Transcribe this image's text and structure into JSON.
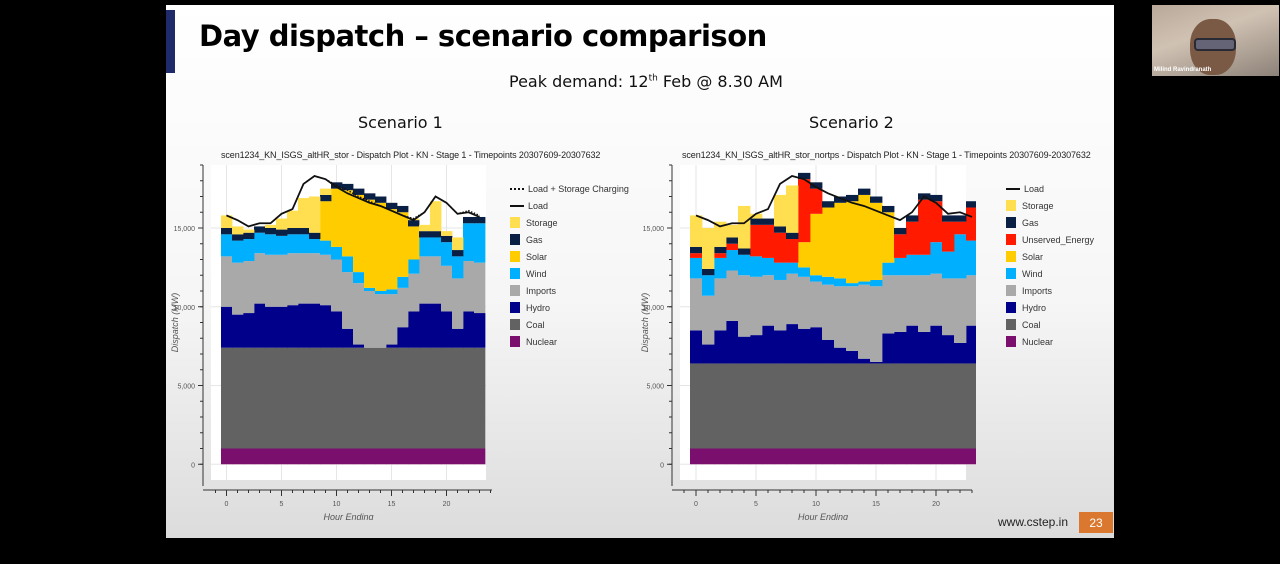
{
  "slide": {
    "title": "Day dispatch – scenario comparison",
    "peak_demand_prefix": "Peak demand: 12",
    "peak_demand_sup": "th",
    "peak_demand_suffix": " Feb @ 8.30 AM",
    "footer_url": "www.cstep.in",
    "page_number": "23"
  },
  "webcam": {
    "participant_name": "Milind Ravindranath"
  },
  "colors": {
    "Nuclear": "#7b0f6e",
    "Coal": "#626262",
    "Hydro": "#00008b",
    "Imports": "#a9a9a9",
    "Wind": "#00b0ff",
    "Solar": "#ffcc00",
    "Unserved_Energy": "#ff1a00",
    "Gas": "#0a1f44",
    "Storage": "#ffde4f",
    "Load": "#111111",
    "accent": "#1f2a6b",
    "page_badge": "#d9782e"
  },
  "chart_data": [
    {
      "type": "area",
      "heading": "Scenario 1",
      "title": "scen1234_KN_ISGS_altHR_stor - Dispatch Plot - KN - Stage 1 - Timepoints 20307609-20307632",
      "xlabel": "Hour Ending",
      "ylabel": "Dispatch (MW)",
      "xlim": [
        -1,
        24
      ],
      "ylim": [
        -1000,
        19000
      ],
      "xticks": [
        0,
        5,
        10,
        15,
        20
      ],
      "xtick_labels": [
        "0",
        "5",
        "10",
        "15",
        "20"
      ],
      "yticks": [
        0,
        5000,
        10000,
        15000
      ],
      "ytick_labels": [
        "0",
        "5,000",
        "10,000",
        "15,000"
      ],
      "grid": true,
      "legend_position": "right",
      "legend": [
        "Load + Storage Charging",
        "Load",
        "Storage",
        "Gas",
        "Solar",
        "Wind",
        "Imports",
        "Hydro",
        "Coal",
        "Nuclear"
      ],
      "x": [
        0,
        1,
        2,
        3,
        4,
        5,
        6,
        7,
        8,
        9,
        10,
        11,
        12,
        13,
        14,
        15,
        16,
        17,
        18,
        19,
        20,
        21,
        22,
        23
      ],
      "series": [
        {
          "name": "Nuclear",
          "values": [
            1000,
            1000,
            1000,
            1000,
            1000,
            1000,
            1000,
            1000,
            1000,
            1000,
            1000,
            1000,
            1000,
            1000,
            1000,
            1000,
            1000,
            1000,
            1000,
            1000,
            1000,
            1000,
            1000,
            1000
          ]
        },
        {
          "name": "Coal",
          "values": [
            6400,
            6400,
            6400,
            6400,
            6400,
            6400,
            6400,
            6400,
            6400,
            6400,
            6400,
            6400,
            6400,
            6400,
            6400,
            6400,
            6400,
            6400,
            6400,
            6400,
            6400,
            6400,
            6400,
            6400
          ]
        },
        {
          "name": "Hydro",
          "values": [
            2600,
            2100,
            2200,
            2800,
            2600,
            2600,
            2700,
            2800,
            2800,
            2700,
            2300,
            1200,
            200,
            0,
            0,
            200,
            1300,
            2300,
            2800,
            2800,
            2300,
            1200,
            2300,
            2200
          ]
        },
        {
          "name": "Imports",
          "values": [
            3200,
            3300,
            3300,
            3200,
            3300,
            3300,
            3300,
            3200,
            3200,
            3200,
            3300,
            3600,
            3900,
            3600,
            3400,
            3200,
            2500,
            2400,
            3000,
            3000,
            2900,
            3200,
            3200,
            3200
          ]
        },
        {
          "name": "Wind",
          "values": [
            1400,
            1400,
            1400,
            1300,
            1300,
            1200,
            1200,
            1200,
            900,
            900,
            800,
            1000,
            700,
            200,
            200,
            300,
            700,
            900,
            1200,
            1200,
            1500,
            1400,
            2400,
            2500
          ]
        },
        {
          "name": "Solar",
          "values": [
            0,
            0,
            0,
            0,
            0,
            0,
            0,
            0,
            0,
            2500,
            3700,
            4200,
            4900,
            5600,
            5600,
            5100,
            4100,
            2100,
            0,
            0,
            0,
            0,
            0,
            0
          ]
        },
        {
          "name": "Gas",
          "values": [
            400,
            400,
            400,
            400,
            400,
            400,
            400,
            400,
            400,
            400,
            400,
            400,
            400,
            400,
            400,
            400,
            400,
            400,
            400,
            400,
            400,
            400,
            400,
            400
          ]
        },
        {
          "name": "Storage",
          "values": [
            800,
            500,
            200,
            0,
            200,
            700,
            1100,
            1900,
            2300,
            400,
            0,
            0,
            0,
            0,
            0,
            0,
            0,
            100,
            400,
            1900,
            300,
            800,
            0,
            0
          ]
        }
      ],
      "load": [
        15800,
        15500,
        15100,
        15300,
        15300,
        15900,
        16200,
        17800,
        18300,
        18100,
        17600,
        17200,
        16900,
        16600,
        16400,
        16100,
        15800,
        15500,
        16000,
        17000,
        16600,
        15900,
        16000,
        15700
      ],
      "load_plus_storage_charging": [
        15800,
        15500,
        15100,
        15300,
        15300,
        15900,
        16200,
        17800,
        18300,
        18100,
        17700,
        17400,
        17000,
        16700,
        16400,
        16100,
        15800,
        15600,
        16000,
        17000,
        16600,
        15900,
        16100,
        15800
      ]
    },
    {
      "type": "area",
      "heading": "Scenario 2",
      "title": "scen1234_KN_ISGS_altHR_stor_nortps - Dispatch Plot - KN - Stage 1 - Timepoints 20307609-20307632",
      "xlabel": "Hour Ending",
      "ylabel": "Dispatch (MW)",
      "xlim": [
        -1,
        24
      ],
      "ylim": [
        -1000,
        19000
      ],
      "xticks": [
        0,
        5,
        10,
        15,
        20
      ],
      "xtick_labels": [
        "0",
        "5",
        "10",
        "15",
        "20"
      ],
      "yticks": [
        0,
        5000,
        10000,
        15000
      ],
      "ytick_labels": [
        "0",
        "5,000",
        "10,000",
        "15,000"
      ],
      "grid": true,
      "legend_position": "right",
      "legend": [
        "Load",
        "Storage",
        "Gas",
        "Unserved_Energy",
        "Solar",
        "Wind",
        "Imports",
        "Hydro",
        "Coal",
        "Nuclear"
      ],
      "x": [
        0,
        1,
        2,
        3,
        4,
        5,
        6,
        7,
        8,
        9,
        10,
        11,
        12,
        13,
        14,
        15,
        16,
        17,
        18,
        19,
        20,
        21,
        22,
        23
      ],
      "series": [
        {
          "name": "Nuclear",
          "values": [
            1000,
            1000,
            1000,
            1000,
            1000,
            1000,
            1000,
            1000,
            1000,
            1000,
            1000,
            1000,
            1000,
            1000,
            1000,
            1000,
            1000,
            1000,
            1000,
            1000,
            1000,
            1000,
            1000,
            1000
          ]
        },
        {
          "name": "Coal",
          "values": [
            5400,
            5400,
            5400,
            5400,
            5400,
            5400,
            5400,
            5400,
            5400,
            5400,
            5400,
            5400,
            5400,
            5400,
            5400,
            5400,
            5400,
            5400,
            5400,
            5400,
            5400,
            5400,
            5400,
            5400
          ]
        },
        {
          "name": "Hydro",
          "values": [
            2100,
            1200,
            2100,
            2700,
            1700,
            1800,
            2400,
            2100,
            2500,
            2200,
            2300,
            1500,
            1000,
            800,
            300,
            100,
            1900,
            2000,
            2400,
            2000,
            2400,
            1800,
            1300,
            2400
          ]
        },
        {
          "name": "Imports",
          "values": [
            3300,
            3100,
            3300,
            3200,
            3900,
            3700,
            3200,
            3200,
            3200,
            3300,
            2900,
            3500,
            3900,
            4100,
            4700,
            4800,
            3700,
            3600,
            3200,
            3600,
            3300,
            3600,
            4100,
            3200
          ]
        },
        {
          "name": "Wind",
          "values": [
            1300,
            1300,
            1300,
            1300,
            1300,
            1300,
            1100,
            1100,
            700,
            600,
            400,
            500,
            500,
            200,
            200,
            400,
            800,
            1100,
            1300,
            1300,
            2000,
            1700,
            2800,
            2200
          ]
        },
        {
          "name": "Solar",
          "values": [
            0,
            0,
            0,
            0,
            0,
            0,
            0,
            0,
            0,
            1600,
            3900,
            4400,
            4800,
            5200,
            5500,
            4900,
            3200,
            0,
            0,
            0,
            0,
            0,
            0,
            0
          ]
        },
        {
          "name": "Unserved_Energy",
          "values": [
            300,
            0,
            300,
            400,
            0,
            2000,
            2100,
            1900,
            1500,
            4000,
            1600,
            0,
            0,
            0,
            0,
            0,
            0,
            1500,
            2100,
            3500,
            2600,
            1900,
            800,
            2100
          ]
        },
        {
          "name": "Gas",
          "values": [
            400,
            400,
            400,
            400,
            400,
            400,
            400,
            400,
            400,
            400,
            400,
            400,
            400,
            400,
            400,
            400,
            400,
            400,
            400,
            400,
            400,
            400,
            400,
            400
          ]
        },
        {
          "name": "Storage",
          "values": [
            2000,
            2600,
            1600,
            800,
            2700,
            300,
            0,
            2000,
            3000,
            0,
            0,
            0,
            0,
            0,
            0,
            0,
            0,
            0,
            0,
            0,
            0,
            0,
            0,
            0
          ]
        }
      ],
      "load": [
        15800,
        15500,
        15100,
        15300,
        15300,
        15900,
        16200,
        17800,
        18300,
        18100,
        17600,
        17200,
        16900,
        16600,
        16400,
        16100,
        15800,
        15500,
        16000,
        17000,
        16600,
        15900,
        16000,
        15700
      ]
    }
  ]
}
